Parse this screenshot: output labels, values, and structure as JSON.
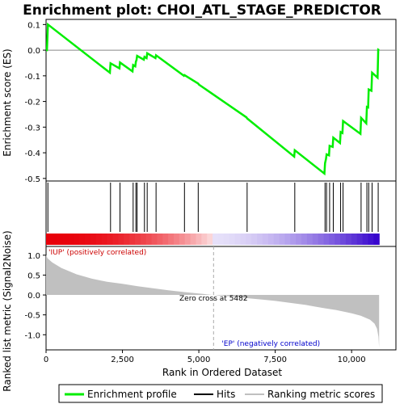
{
  "chart_data": {
    "type": "line",
    "title": "Enrichment plot: CHOI_ATL_STAGE_PREDICTOR",
    "x_axis": {
      "label": "Rank in Ordered Dataset",
      "ticks": [
        0,
        2500,
        5000,
        7500,
        10000
      ],
      "tick_labels": [
        "0",
        "2,500",
        "5,000",
        "7,500",
        "10,000"
      ],
      "range": [
        0,
        11450
      ]
    },
    "es_panel": {
      "ylabel": "Enrichment score (ES)",
      "ylim": [
        -0.51,
        0.12
      ],
      "ticks": [
        0.1,
        0.0,
        -0.1,
        -0.2,
        -0.3,
        -0.4,
        -0.5
      ],
      "tick_labels": [
        "0.1",
        "0.0",
        "-0.1",
        "-0.2",
        "-0.3",
        "-0.4",
        "-0.5"
      ],
      "series": {
        "name": "Enrichment profile",
        "color": "#00ee00",
        "points": [
          [
            0,
            0.0
          ],
          [
            30,
            0.0
          ],
          [
            60,
            0.1
          ],
          [
            2090,
            -0.088
          ],
          [
            2110,
            -0.051
          ],
          [
            2400,
            -0.071
          ],
          [
            2420,
            -0.048
          ],
          [
            2830,
            -0.083
          ],
          [
            2850,
            -0.058
          ],
          [
            2920,
            -0.063
          ],
          [
            2940,
            -0.044
          ],
          [
            2960,
            -0.039
          ],
          [
            2980,
            -0.022
          ],
          [
            3200,
            -0.037
          ],
          [
            3220,
            -0.026
          ],
          [
            3290,
            -0.031
          ],
          [
            3310,
            -0.012
          ],
          [
            3580,
            -0.031
          ],
          [
            3600,
            -0.02
          ],
          [
            4510,
            -0.1
          ],
          [
            4530,
            -0.097
          ],
          [
            4980,
            -0.13
          ],
          [
            5000,
            -0.134
          ],
          [
            6560,
            -0.262
          ],
          [
            6580,
            -0.266
          ],
          [
            8120,
            -0.415
          ],
          [
            8140,
            -0.39
          ],
          [
            9110,
            -0.481
          ],
          [
            9130,
            -0.44
          ],
          [
            9160,
            -0.425
          ],
          [
            9180,
            -0.406
          ],
          [
            9260,
            -0.41
          ],
          [
            9280,
            -0.373
          ],
          [
            9380,
            -0.377
          ],
          [
            9400,
            -0.341
          ],
          [
            9620,
            -0.362
          ],
          [
            9640,
            -0.319
          ],
          [
            9700,
            -0.323
          ],
          [
            9720,
            -0.276
          ],
          [
            10290,
            -0.326
          ],
          [
            10310,
            -0.264
          ],
          [
            10480,
            -0.285
          ],
          [
            10500,
            -0.221
          ],
          [
            10540,
            -0.223
          ],
          [
            10560,
            -0.153
          ],
          [
            10650,
            -0.158
          ],
          [
            10670,
            -0.088
          ],
          [
            10850,
            -0.107
          ],
          [
            10870,
            0.002
          ],
          [
            10900,
            0.0
          ]
        ]
      },
      "zero_line": 0.0
    },
    "hits": {
      "name": "Hits",
      "positions": [
        60,
        2110,
        2420,
        2850,
        2940,
        2980,
        3220,
        3310,
        3600,
        4530,
        4980,
        6580,
        8140,
        9130,
        9180,
        9280,
        9400,
        9640,
        9720,
        10310,
        10500,
        10560,
        10670,
        10870
      ]
    },
    "ranked_metric": {
      "ylabel": "Ranked list metric (Signal2Noise)",
      "ylim": [
        -1.38,
        1.22
      ],
      "ticks": [
        1.0,
        0.5,
        0.0,
        -0.5,
        -1.0
      ],
      "tick_labels": [
        "1.0",
        "0.5",
        "0.0",
        "-0.5",
        "-1.0"
      ],
      "name": "Ranking metric scores",
      "color": "#c0c0c0",
      "points": [
        [
          0,
          1.0
        ],
        [
          50,
          0.92
        ],
        [
          200,
          0.82
        ],
        [
          500,
          0.68
        ],
        [
          1000,
          0.52
        ],
        [
          1500,
          0.41
        ],
        [
          2000,
          0.33
        ],
        [
          2500,
          0.28
        ],
        [
          3000,
          0.22
        ],
        [
          3500,
          0.17
        ],
        [
          4000,
          0.12
        ],
        [
          4500,
          0.075
        ],
        [
          5000,
          0.035
        ],
        [
          5482,
          0.0
        ],
        [
          6000,
          -0.035
        ],
        [
          6500,
          -0.075
        ],
        [
          7000,
          -0.11
        ],
        [
          7500,
          -0.15
        ],
        [
          8000,
          -0.2
        ],
        [
          8500,
          -0.25
        ],
        [
          9000,
          -0.32
        ],
        [
          9500,
          -0.38
        ],
        [
          10000,
          -0.46
        ],
        [
          10300,
          -0.52
        ],
        [
          10600,
          -0.62
        ],
        [
          10750,
          -0.72
        ],
        [
          10830,
          -0.85
        ],
        [
          10880,
          -1.05
        ],
        [
          10900,
          -1.32
        ]
      ],
      "zero_cross_label": "Zero cross at 5482",
      "zero_cross": 5482,
      "pos_label": "'IUP' (positively correlated)",
      "neg_label": "'EP' (negatively correlated)"
    },
    "legend": {
      "placement": "bottom",
      "items": [
        "Enrichment profile",
        "Hits",
        "Ranking metric scores"
      ]
    },
    "colors": {
      "profile": "#00ee00",
      "pos_label": "#cc0000",
      "neg_label": "#0000cc",
      "bar_pos": "#e8000a",
      "bar_neg": "#3300cc"
    }
  }
}
